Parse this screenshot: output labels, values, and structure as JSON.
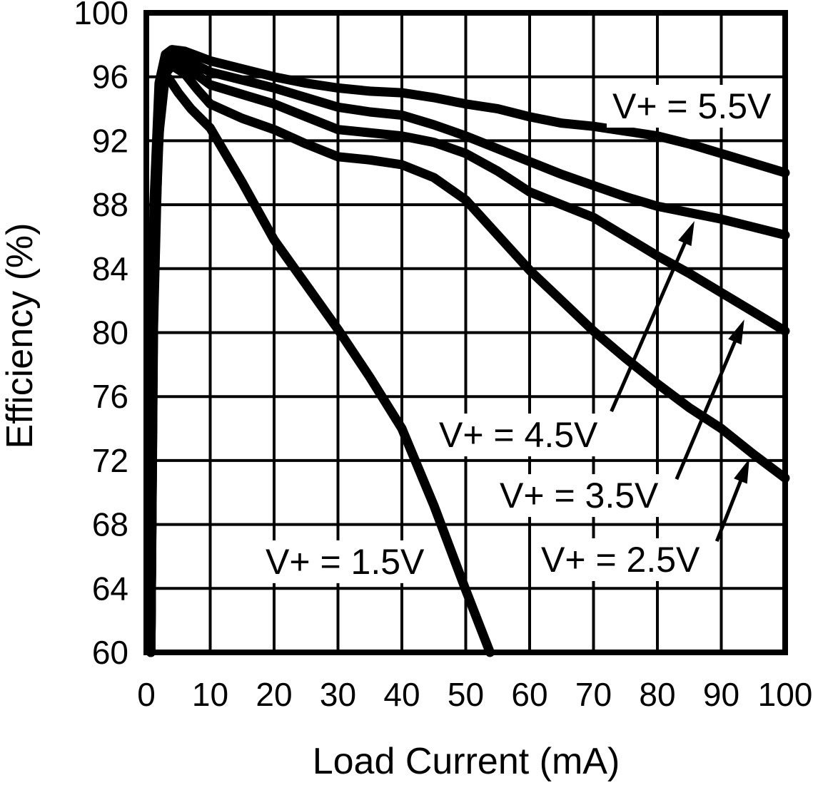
{
  "colors": {
    "ink": "#000000",
    "background": "#ffffff"
  },
  "chart_data": {
    "type": "line",
    "title": "",
    "xlabel": "Load Current (mA)",
    "ylabel": "Efficiency (%)",
    "xlim": [
      0,
      100
    ],
    "ylim": [
      60,
      100
    ],
    "xticks": [
      0,
      10,
      20,
      30,
      40,
      50,
      60,
      70,
      80,
      90,
      100
    ],
    "yticks": [
      60,
      64,
      68,
      72,
      76,
      80,
      84,
      88,
      92,
      96,
      100
    ],
    "grid": true,
    "legend_position": "inline-annotations",
    "series": [
      {
        "name": "V+ = 5.5V",
        "x": [
          0.7,
          1.2,
          2,
          3,
          4,
          6,
          8,
          10,
          15,
          20,
          25,
          30,
          35,
          40,
          45,
          50,
          55,
          60,
          65,
          70,
          75,
          80,
          85,
          90,
          95,
          100
        ],
        "y": [
          60,
          88,
          95.6,
          97.4,
          97.7,
          97.6,
          97.3,
          97.0,
          96.5,
          96.0,
          95.6,
          95.3,
          95.1,
          95.0,
          94.7,
          94.3,
          94.0,
          93.5,
          93.1,
          92.9,
          92.6,
          92.3,
          91.8,
          91.2,
          90.6,
          90.0
        ]
      },
      {
        "name": "V+ = 4.5V",
        "x": [
          0.7,
          1.2,
          2,
          3,
          4,
          6,
          8,
          10,
          15,
          20,
          25,
          30,
          35,
          40,
          45,
          50,
          55,
          60,
          65,
          70,
          75,
          80,
          85,
          90,
          95,
          100
        ],
        "y": [
          60,
          87,
          94.8,
          97.1,
          97.4,
          97.1,
          96.7,
          96.3,
          95.8,
          95.3,
          94.7,
          94.1,
          93.8,
          93.6,
          93.0,
          92.3,
          91.5,
          90.7,
          89.9,
          89.2,
          88.5,
          87.9,
          87.5,
          87.1,
          86.6,
          86.1
        ]
      },
      {
        "name": "V+ = 3.5V",
        "x": [
          0.7,
          1.2,
          2,
          3,
          4,
          6,
          8,
          10,
          15,
          20,
          25,
          30,
          35,
          40,
          45,
          50,
          55,
          60,
          65,
          70,
          75,
          80,
          85,
          90,
          95,
          100
        ],
        "y": [
          60,
          86,
          93.8,
          96.7,
          97.1,
          96.7,
          96.1,
          95.5,
          94.9,
          94.3,
          93.5,
          92.7,
          92.5,
          92.3,
          91.9,
          91.2,
          90.1,
          88.8,
          88.0,
          87.2,
          86.0,
          84.8,
          83.7,
          82.5,
          81.3,
          80.1
        ]
      },
      {
        "name": "V+ = 2.5V",
        "x": [
          0.7,
          1.2,
          2,
          3,
          4,
          6,
          8,
          10,
          15,
          20,
          25,
          30,
          35,
          40,
          45,
          50,
          55,
          60,
          65,
          70,
          75,
          80,
          85,
          90,
          95,
          100
        ],
        "y": [
          60,
          84,
          92.5,
          96.2,
          96.7,
          96.2,
          95.2,
          94.3,
          93.4,
          92.7,
          91.8,
          91.0,
          90.8,
          90.5,
          89.7,
          88.3,
          86.1,
          83.9,
          82.0,
          80.1,
          78.4,
          76.8,
          75.3,
          74.0,
          72.4,
          70.9
        ]
      },
      {
        "name": "V+ = 1.5V",
        "x": [
          0.7,
          1.1,
          1.8,
          2.5,
          3.5,
          5,
          7,
          10,
          15,
          20,
          25,
          30,
          35,
          40,
          45,
          50,
          53.8
        ],
        "y": [
          60,
          80,
          91,
          95.8,
          95.9,
          95.0,
          94.0,
          92.8,
          89.4,
          85.8,
          83.0,
          80.2,
          77.2,
          74.0,
          69.2,
          63.9,
          60.0
        ]
      }
    ],
    "annotations": [
      {
        "label": "V+ = 5.5V",
        "x": 72.96,
        "y": 93.4,
        "arrow": null
      },
      {
        "label": "V+ = 4.5V",
        "x": 45.81,
        "y": 72.84,
        "arrow": {
          "x1": 72.8,
          "y1": 75.07,
          "x2": 85.8,
          "y2": 86.98
        }
      },
      {
        "label": "V+ = 3.5V",
        "x": 55.31,
        "y": 69.05,
        "arrow": {
          "x1": 83.0,
          "y1": 70.83,
          "x2": 93.6,
          "y2": 80.82
        }
      },
      {
        "label": "V+ = 2.5V",
        "x": 61.79,
        "y": 65.04,
        "arrow": {
          "x1": 89.3,
          "y1": 66.95,
          "x2": 94.4,
          "y2": 72.12
        }
      },
      {
        "label": "V+ = 1.5V",
        "x": 18.66,
        "y": 64.91,
        "arrow": null
      }
    ]
  }
}
